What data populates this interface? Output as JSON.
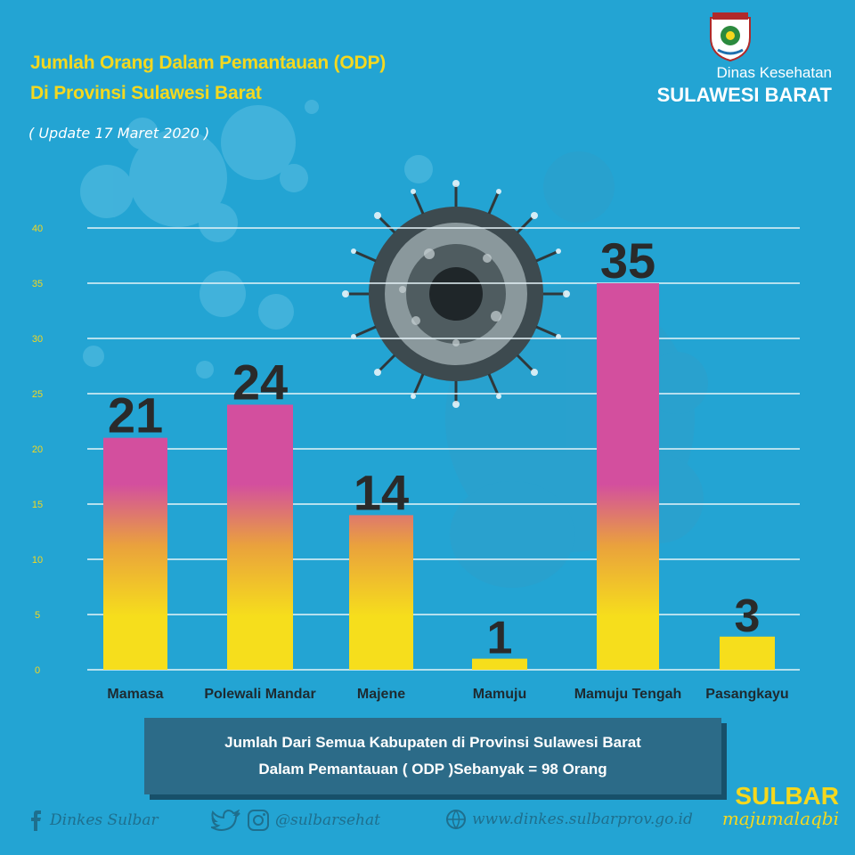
{
  "header": {
    "title_line1": "Jumlah Orang Dalam Pemantauan (ODP)",
    "title_line2": "Di Provinsi Sulawesi Barat",
    "update": "( Update 17 Maret 2020 )"
  },
  "org": {
    "line1": "Dinas Kesehatan",
    "line2": "SULAWESI BARAT"
  },
  "chart_data": {
    "type": "bar",
    "title": "Jumlah Orang Dalam Pemantauan (ODP) Di Provinsi Sulawesi Barat",
    "categories": [
      "Mamasa",
      "Polewali Mandar",
      "Majene",
      "Mamuju",
      "Mamuju Tengah",
      "Pasangkayu"
    ],
    "values": [
      21,
      24,
      14,
      1,
      35,
      3
    ],
    "value_labels": [
      "21",
      "24",
      "14",
      "1",
      "35",
      "3"
    ],
    "yticks": [
      "0",
      "5",
      "10",
      "15",
      "20",
      "25",
      "30",
      "35",
      "40"
    ],
    "ylim": [
      0,
      40
    ],
    "xlabel": "",
    "ylabel": "",
    "grid": true,
    "colors": {
      "bar_top": "#d34f9e",
      "bar_mid": "#eaa23c",
      "bar_bottom": "#f6de1c",
      "grid": "#e6f3f8",
      "tick": "#f5d81e",
      "category_label": "#1e2a30",
      "value_label": "#2a2a2a"
    }
  },
  "summary": {
    "line1": "Jumlah Dari Semua Kabupaten di Provinsi Sulawesi Barat",
    "line2": "Dalam Pemantauan ( ODP )Sebanyak = 98 Orang"
  },
  "footer": {
    "facebook": "Dinkes Sulbar",
    "social": "@sulbarsehat",
    "website": "www.dinkes.sulbarprov.go.id"
  },
  "brand": {
    "line1": "SULBAR",
    "line2": "majumalaqbi"
  },
  "colors": {
    "background": "#23a4d3",
    "title": "#f5d81e",
    "summary_box": "#2c6b88"
  }
}
